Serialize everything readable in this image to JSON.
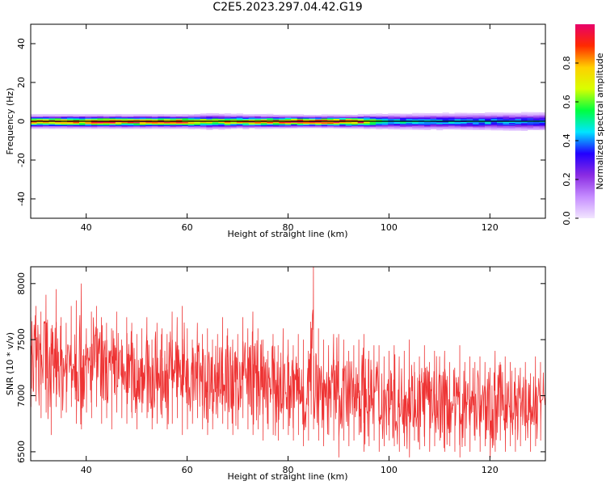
{
  "title": "C2E5.2023.297.04.42.G19",
  "colors": {
    "snr_line": "#ee3333",
    "colormap": [
      "#f2e6ff",
      "#c58cff",
      "#8a2be2",
      "#2200ff",
      "#00e5ff",
      "#00ff40",
      "#d8ff00",
      "#ffd000",
      "#ff2a00",
      "#e8006a"
    ]
  },
  "chart_data": [
    {
      "type": "heatmap",
      "xlabel": "Height of straight line (km)",
      "ylabel": "Frequency (Hz)",
      "xlim": [
        29,
        131
      ],
      "ylim": [
        -50,
        50
      ],
      "xticks": [
        40,
        60,
        80,
        100,
        120
      ],
      "yticks": [
        -40,
        -20,
        0,
        20,
        40
      ],
      "colorbar": {
        "label": "Normalized spectral amplitude",
        "range": [
          0.0,
          1.0
        ],
        "ticks": [
          0.0,
          0.2,
          0.4,
          0.6,
          0.8
        ]
      },
      "band_center_hz": 0,
      "profile": {
        "x": [
          30,
          40,
          50,
          60,
          65,
          70,
          80,
          85,
          90,
          95,
          100,
          110,
          120,
          130
        ],
        "peak_amplitude": [
          0.85,
          0.9,
          0.92,
          0.88,
          0.7,
          0.85,
          0.9,
          0.98,
          0.92,
          0.88,
          0.5,
          0.45,
          0.45,
          0.42
        ],
        "half_width_hz": [
          2.5,
          2.5,
          2.5,
          2.5,
          3.0,
          2.6,
          2.4,
          2.3,
          2.4,
          2.5,
          3.0,
          3.2,
          3.4,
          3.6
        ]
      }
    },
    {
      "type": "line",
      "xlabel": "Height of straight line (km)",
      "ylabel": "SNR (10 * v/v)",
      "xlim": [
        29,
        131
      ],
      "ylim": [
        6420,
        8150
      ],
      "xticks": [
        40,
        60,
        80,
        100,
        120
      ],
      "yticks": [
        6500,
        7000,
        7500,
        8000
      ],
      "series": [
        {
          "x": [
            29,
            30,
            31,
            32,
            33,
            34,
            35,
            36,
            37,
            38,
            39,
            40,
            41,
            42,
            43,
            44,
            45,
            46,
            47,
            48,
            49,
            50,
            51,
            52,
            53,
            54,
            55,
            56,
            57,
            58,
            59,
            60,
            61,
            62,
            63,
            64,
            65,
            66,
            67,
            68,
            69,
            70,
            71,
            72,
            73,
            74,
            75,
            76,
            77,
            78,
            79,
            80,
            81,
            82,
            83,
            84,
            85,
            86,
            87,
            88,
            89,
            90,
            91,
            92,
            93,
            94,
            95,
            96,
            97,
            98,
            99,
            100,
            101,
            102,
            103,
            104,
            105,
            106,
            107,
            108,
            109,
            110,
            111,
            112,
            113,
            114,
            115,
            116,
            117,
            118,
            119,
            120,
            121,
            122,
            123,
            124,
            125,
            126,
            127,
            128,
            129,
            130,
            131
          ],
          "values_max": [
            7700,
            7800,
            7750,
            7900,
            7600,
            7950,
            7700,
            7650,
            7800,
            7850,
            8000,
            7600,
            7750,
            7800,
            7700,
            7650,
            7600,
            7750,
            7500,
            7700,
            7650,
            7550,
            7600,
            7700,
            7500,
            7650,
            7600,
            7550,
            7750,
            7700,
            7800,
            7600,
            7500,
            7650,
            7550,
            7600,
            7500,
            7550,
            7700,
            7600,
            7500,
            7550,
            7700,
            7600,
            7750,
            7600,
            7500,
            7400,
            7550,
            7450,
            7600,
            7500,
            7450,
            7550,
            7500,
            7400,
            8150,
            7600,
            7500,
            7450,
            7550,
            7550,
            7500,
            7400,
            7450,
            7500,
            7550,
            7400,
            7450,
            7450,
            7350,
            7400,
            7450,
            7350,
            7400,
            7500,
            7300,
            7350,
            7450,
            7300,
            7400,
            7350,
            7400,
            7300,
            7250,
            7450,
            7300,
            7350,
            7300,
            7350,
            7300,
            7250,
            7400,
            7300,
            7350,
            7300,
            7250,
            7250,
            7300,
            7200,
            7350,
            7300,
            7250
          ],
          "values_min": [
            6900,
            6950,
            6800,
            6850,
            6650,
            6900,
            6800,
            6850,
            6900,
            6750,
            6700,
            6850,
            6800,
            6900,
            6750,
            6800,
            6700,
            6850,
            6800,
            6750,
            6800,
            6700,
            6850,
            6800,
            6700,
            6750,
            6800,
            6700,
            6750,
            6800,
            6650,
            6700,
            6750,
            6800,
            6700,
            6650,
            6700,
            6800,
            6750,
            6700,
            6650,
            6700,
            6800,
            6700,
            6650,
            6700,
            6600,
            6700,
            6650,
            6600,
            6700,
            6650,
            6600,
            6650,
            6550,
            6600,
            6700,
            6600,
            6550,
            6650,
            6600,
            6450,
            6600,
            6550,
            6600,
            6650,
            6500,
            6550,
            6600,
            6500,
            6550,
            6600,
            6550,
            6500,
            6550,
            6450,
            6600,
            6520,
            6550,
            6500,
            6550,
            6600,
            6500,
            6550,
            6500,
            6450,
            6550,
            6500,
            6600,
            6500,
            6550,
            6450,
            6500,
            6600,
            6500,
            6550,
            6500,
            6550,
            6600,
            6500,
            6550,
            6600,
            6600
          ]
        }
      ]
    }
  ]
}
